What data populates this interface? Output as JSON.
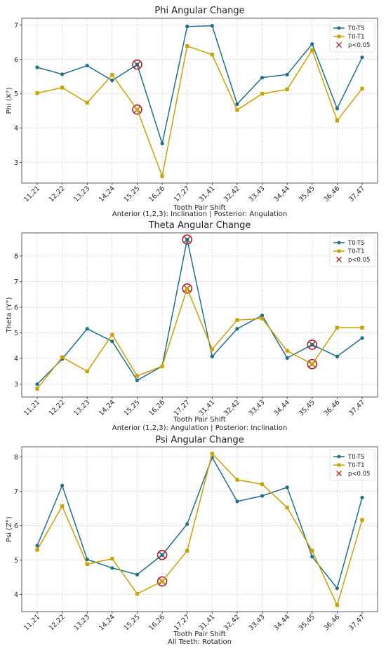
{
  "colors": {
    "T0-TS": "#1f6e8c",
    "T0-T1": "#c9a100",
    "sig": "#b22222",
    "grid": "#cccccc"
  },
  "chart_data": [
    {
      "type": "line",
      "title": "Phi Angular Change",
      "xlabel": "Tooth Pair Shift",
      "subcaption": "Anterior (1,2,3): Inclination | Posterior: Angulation",
      "ylabel": "Phi (X°)",
      "categories": [
        "11,21",
        "12,22",
        "13,23",
        "14,24",
        "15,25",
        "16,26",
        "17,27",
        "31,41",
        "32,42",
        "33,43",
        "34,44",
        "35,45",
        "36,46",
        "37,47"
      ],
      "ylim": [
        2.4,
        7.2
      ],
      "yticks": [
        3,
        4,
        5,
        6,
        7
      ],
      "grid": true,
      "legend_position": "top-right",
      "legend": [
        "T0-TS",
        "T0-T1",
        "p<0.05"
      ],
      "series": [
        {
          "name": "T0-TS",
          "marker": "circle",
          "values": [
            5.77,
            5.57,
            5.82,
            5.39,
            5.85,
            3.55,
            6.96,
            6.98,
            4.7,
            5.47,
            5.56,
            6.45,
            4.57,
            6.06
          ]
        },
        {
          "name": "T0-T1",
          "marker": "square",
          "values": [
            5.02,
            5.18,
            4.74,
            5.55,
            4.54,
            2.6,
            6.39,
            6.14,
            4.53,
            5.0,
            5.13,
            6.27,
            4.22,
            5.15
          ]
        }
      ],
      "significant": [
        {
          "category": "15,25",
          "value": 5.85
        },
        {
          "category": "15,25",
          "value": 4.54
        }
      ]
    },
    {
      "type": "line",
      "title": "Theta Angular Change",
      "xlabel": "Tooth Pair Shift",
      "subcaption": "Anterior (1,2,3): Angulation | Posterior: Inclination",
      "ylabel": "Theta (Y°)",
      "categories": [
        "11,21",
        "12,22",
        "13,23",
        "14,24",
        "15,25",
        "16,26",
        "17,27",
        "31,41",
        "32,42",
        "33,43",
        "34,44",
        "35,45",
        "36,46",
        "37,47"
      ],
      "ylim": [
        2.5,
        8.9
      ],
      "yticks": [
        3,
        4,
        5,
        6,
        7,
        8
      ],
      "grid": true,
      "legend_position": "top-right",
      "legend": [
        "T0-TS",
        "T0-T1",
        "p<0.05"
      ],
      "series": [
        {
          "name": "T0-TS",
          "marker": "circle",
          "values": [
            3.0,
            3.98,
            5.16,
            4.67,
            3.15,
            3.7,
            8.64,
            4.08,
            5.16,
            5.68,
            4.02,
            4.54,
            4.08,
            4.8
          ]
        },
        {
          "name": "T0-T1",
          "marker": "square",
          "values": [
            2.82,
            4.05,
            3.5,
            4.93,
            3.32,
            3.7,
            6.73,
            4.36,
            5.5,
            5.56,
            4.3,
            3.78,
            5.2,
            5.2
          ]
        }
      ],
      "significant": [
        {
          "category": "17,27",
          "value": 8.64
        },
        {
          "category": "17,27",
          "value": 6.73
        },
        {
          "category": "35,45",
          "value": 4.54
        },
        {
          "category": "35,45",
          "value": 3.78
        }
      ]
    },
    {
      "type": "line",
      "title": "Psi Angular Change",
      "xlabel": "Tooth Pair Shift",
      "subcaption": "All Teeth: Rotation",
      "ylabel": "Psi (Z°)",
      "categories": [
        "11,21",
        "12,22",
        "13,23",
        "14,24",
        "15,25",
        "16,26",
        "17,27",
        "31,41",
        "32,42",
        "33,43",
        "34,44",
        "35,45",
        "36,46",
        "37,47"
      ],
      "ylim": [
        3.5,
        8.3
      ],
      "yticks": [
        4,
        5,
        6,
        7,
        8
      ],
      "grid": true,
      "legend_position": "top-right",
      "legend": [
        "T0-TS",
        "T0-T1",
        "p<0.05"
      ],
      "series": [
        {
          "name": "T0-TS",
          "marker": "circle",
          "values": [
            5.42,
            7.17,
            5.02,
            4.77,
            4.58,
            5.15,
            6.05,
            7.99,
            6.71,
            6.87,
            7.12,
            5.1,
            4.18,
            6.82
          ]
        },
        {
          "name": "T0-T1",
          "marker": "square",
          "values": [
            5.3,
            6.57,
            4.88,
            5.04,
            4.02,
            4.38,
            5.27,
            8.1,
            7.34,
            7.21,
            6.53,
            5.27,
            3.69,
            6.17
          ]
        }
      ],
      "significant": [
        {
          "category": "16,26",
          "value": 5.15
        },
        {
          "category": "16,26",
          "value": 4.38
        }
      ]
    }
  ]
}
